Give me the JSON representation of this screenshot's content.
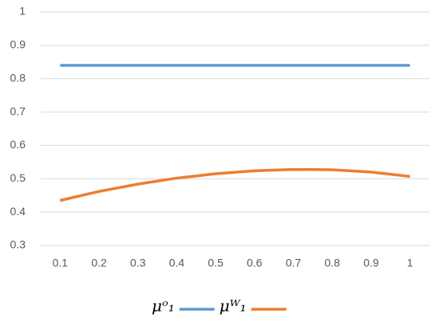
{
  "chart_data": {
    "type": "line",
    "categories": [
      "0.1",
      "0.2",
      "0.3",
      "0.4",
      "0.5",
      "0.6",
      "0.7",
      "0.8",
      "0.9",
      "1"
    ],
    "series": [
      {
        "name": "μᵒ₁",
        "color": "#5b9bd5",
        "values": [
          0.84,
          0.84,
          0.84,
          0.84,
          0.84,
          0.84,
          0.84,
          0.84,
          0.84,
          0.84
        ]
      },
      {
        "name": "μᵂ₁",
        "color": "#ed7d31",
        "values": [
          0.435,
          0.462,
          0.484,
          0.502,
          0.515,
          0.524,
          0.528,
          0.527,
          0.52,
          0.507
        ]
      }
    ],
    "ylim": [
      0.3,
      1
    ],
    "yticks": [
      0.3,
      0.4,
      0.5,
      0.6,
      0.7,
      0.8,
      0.9,
      1
    ],
    "grid": true,
    "legend": "bottom"
  }
}
